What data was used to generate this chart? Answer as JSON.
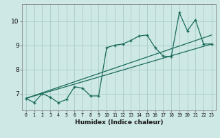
{
  "xlabel": "Humidex (Indice chaleur)",
  "bg_color": "#cde8e5",
  "line_color": "#1a6b5a",
  "grid_color": "#aed0cc",
  "xlim": [
    -0.5,
    23.5
  ],
  "ylim": [
    6.3,
    10.7
  ],
  "xticks": [
    0,
    1,
    2,
    3,
    4,
    5,
    6,
    7,
    8,
    9,
    10,
    11,
    12,
    13,
    14,
    15,
    16,
    17,
    18,
    19,
    20,
    21,
    22,
    23
  ],
  "yticks": [
    7,
    8,
    9,
    10
  ],
  "series1_x": [
    0,
    1,
    2,
    3,
    4,
    5,
    6,
    7,
    8,
    9,
    10,
    11,
    12,
    13,
    14,
    15,
    16,
    17,
    18,
    19,
    20,
    21,
    22,
    23
  ],
  "series1_y": [
    6.8,
    6.62,
    7.0,
    6.85,
    6.62,
    6.75,
    7.28,
    7.22,
    6.9,
    6.9,
    8.9,
    9.0,
    9.05,
    9.2,
    9.38,
    9.42,
    8.9,
    8.55,
    8.52,
    10.35,
    9.6,
    10.05,
    9.05,
    9.05
  ],
  "line2_x": [
    0,
    23
  ],
  "line2_y": [
    6.8,
    9.05
  ],
  "line3_x": [
    0,
    23
  ],
  "line3_y": [
    6.8,
    9.42
  ]
}
